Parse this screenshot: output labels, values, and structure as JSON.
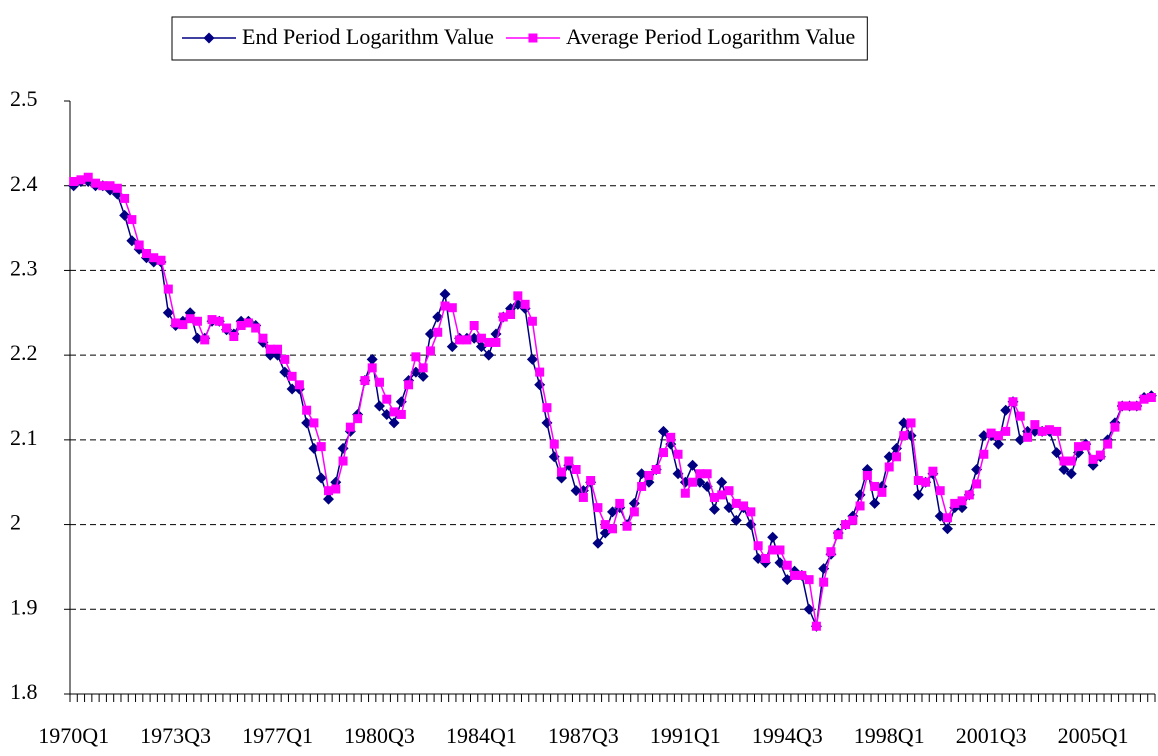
{
  "chart_data": {
    "type": "line",
    "categories": [
      "1970Q1",
      null,
      null,
      null,
      null,
      null,
      null,
      null,
      null,
      null,
      null,
      null,
      null,
      null,
      "1973Q3",
      null,
      null,
      null,
      null,
      null,
      null,
      null,
      null,
      null,
      null,
      null,
      null,
      null,
      "1977Q1",
      null,
      null,
      null,
      null,
      null,
      null,
      null,
      null,
      null,
      null,
      null,
      null,
      null,
      "1980Q3",
      null,
      null,
      null,
      null,
      null,
      null,
      null,
      null,
      null,
      null,
      null,
      null,
      null,
      "1984Q1",
      null,
      null,
      null,
      null,
      null,
      null,
      null,
      null,
      null,
      null,
      null,
      null,
      null,
      "1987Q3",
      null,
      null,
      null,
      null,
      null,
      null,
      null,
      null,
      null,
      null,
      null,
      null,
      null,
      "1991Q1",
      null,
      null,
      null,
      null,
      null,
      null,
      null,
      null,
      null,
      null,
      null,
      null,
      null,
      "1994Q3",
      null,
      null,
      null,
      null,
      null,
      null,
      null,
      null,
      null,
      null,
      null,
      null,
      null,
      "1998Q1",
      null,
      null,
      null,
      null,
      null,
      null,
      null,
      null,
      null,
      null,
      null,
      null,
      null,
      "2001Q3",
      null,
      null,
      null,
      null,
      null,
      null,
      null,
      null,
      null,
      null,
      null,
      null,
      null,
      "2005Q1",
      null,
      null,
      null,
      null,
      null,
      null,
      null,
      null
    ],
    "series": [
      {
        "name": "End Period Logarithm Value",
        "color": "#000080",
        "marker": "diamond",
        "values": [
          2.4,
          2.405,
          2.405,
          2.4,
          2.4,
          2.395,
          2.39,
          2.365,
          2.335,
          2.325,
          2.315,
          2.31,
          2.31,
          2.25,
          2.235,
          2.24,
          2.25,
          2.22,
          2.22,
          2.24,
          2.24,
          2.23,
          2.225,
          2.24,
          2.24,
          2.235,
          2.215,
          2.2,
          2.2,
          2.18,
          2.16,
          2.16,
          2.12,
          2.09,
          2.055,
          2.03,
          2.05,
          2.09,
          2.11,
          2.13,
          2.17,
          2.195,
          2.14,
          2.13,
          2.12,
          2.145,
          2.17,
          2.18,
          2.175,
          2.225,
          2.245,
          2.272,
          2.21,
          2.22,
          2.22,
          2.22,
          2.21,
          2.2,
          2.225,
          2.245,
          2.255,
          2.26,
          2.255,
          2.195,
          2.165,
          2.12,
          2.08,
          2.055,
          2.07,
          2.04,
          2.04,
          2.05,
          1.978,
          1.99,
          2.015,
          2.02,
          2.0,
          2.025,
          2.06,
          2.05,
          2.065,
          2.11,
          2.095,
          2.06,
          2.05,
          2.07,
          2.05,
          2.045,
          2.018,
          2.05,
          2.02,
          2.005,
          2.02,
          2.0,
          1.96,
          1.955,
          1.985,
          1.955,
          1.935,
          1.945,
          1.94,
          1.9,
          1.88,
          1.948,
          1.965,
          1.99,
          2.0,
          2.01,
          2.035,
          2.065,
          2.025,
          2.045,
          2.08,
          2.09,
          2.12,
          2.105,
          2.035,
          2.05,
          2.06,
          2.01,
          1.995,
          2.02,
          2.02,
          2.035,
          2.065,
          2.105,
          2.105,
          2.095,
          2.135,
          2.145,
          2.1,
          2.11,
          2.11,
          2.11,
          2.11,
          2.085,
          2.065,
          2.06,
          2.085,
          2.095,
          2.07,
          2.08,
          2.1,
          2.12,
          2.14,
          2.14,
          2.14,
          2.15,
          2.152
        ]
      },
      {
        "name": "Average Period Logarithm Value",
        "color": "#FF00FF",
        "marker": "square",
        "values": [
          2.405,
          2.407,
          2.41,
          2.403,
          2.4,
          2.4,
          2.397,
          2.385,
          2.36,
          2.33,
          2.32,
          2.315,
          2.312,
          2.278,
          2.238,
          2.236,
          2.243,
          2.24,
          2.218,
          2.242,
          2.24,
          2.232,
          2.222,
          2.235,
          2.238,
          2.232,
          2.22,
          2.207,
          2.207,
          2.195,
          2.175,
          2.165,
          2.135,
          2.12,
          2.092,
          2.04,
          2.042,
          2.075,
          2.115,
          2.125,
          2.17,
          2.185,
          2.168,
          2.148,
          2.133,
          2.13,
          2.165,
          2.198,
          2.185,
          2.205,
          2.227,
          2.258,
          2.256,
          2.218,
          2.218,
          2.235,
          2.22,
          2.215,
          2.215,
          2.245,
          2.248,
          2.27,
          2.26,
          2.24,
          2.18,
          2.138,
          2.095,
          2.062,
          2.075,
          2.065,
          2.032,
          2.052,
          2.02,
          2.0,
          1.995,
          2.025,
          1.998,
          2.015,
          2.045,
          2.058,
          2.065,
          2.085,
          2.103,
          2.083,
          2.037,
          2.05,
          2.06,
          2.06,
          2.032,
          2.035,
          2.04,
          2.025,
          2.022,
          2.015,
          1.975,
          1.96,
          1.97,
          1.97,
          1.952,
          1.94,
          1.94,
          1.935,
          1.88,
          1.932,
          1.968,
          1.988,
          2.0,
          2.005,
          2.022,
          2.058,
          2.045,
          2.038,
          2.068,
          2.08,
          2.105,
          2.12,
          2.052,
          2.05,
          2.063,
          2.04,
          2.008,
          2.025,
          2.028,
          2.035,
          2.048,
          2.083,
          2.108,
          2.105,
          2.11,
          2.145,
          2.128,
          2.103,
          2.118,
          2.11,
          2.112,
          2.11,
          2.075,
          2.075,
          2.092,
          2.093,
          2.077,
          2.082,
          2.095,
          2.115,
          2.14,
          2.14,
          2.14,
          2.148,
          2.15
        ]
      }
    ],
    "ylim": [
      1.8,
      2.5
    ],
    "yticks": [
      1.8,
      1.9,
      2,
      2.1,
      2.2,
      2.3,
      2.4,
      2.5
    ],
    "grid": true,
    "legend": "top"
  }
}
